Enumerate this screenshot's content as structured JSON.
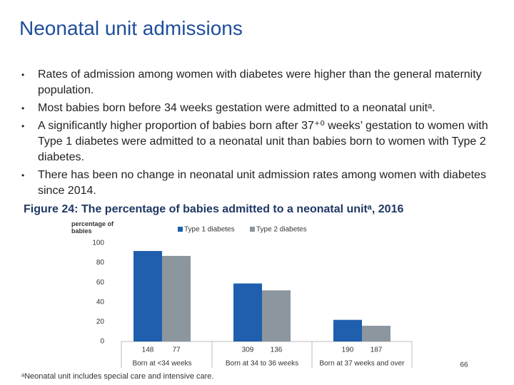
{
  "slide": {
    "title": "Neonatal unit admissions",
    "bullets": [
      "Rates of admission among women with diabetes were higher than the general maternity population.",
      "Most babies born before 34 weeks gestation were admitted to a neonatal unitᵃ.",
      "A significantly higher proportion of babies born after 37⁺⁰ weeks’ gestation to women with Type 1 diabetes were admitted to a neonatal unit than babies born to women with Type 2 diabetes.",
      "There has been no change in neonatal unit admission rates among women with diabetes since 2014."
    ],
    "footnote": "ᵃNeonatal unit includes special care and intensive care.",
    "page_number": "66"
  },
  "chart_data": {
    "type": "bar",
    "title": "Figure 24: The percentage of babies admitted to a neonatal unitᵃ, 2016",
    "y_label": "percentage of babies",
    "categories": [
      "Born at <34 weeks",
      "Born at 34 to 36 weeks",
      "Born at 37 weeks and over"
    ],
    "series": [
      {
        "name": "Type 1 diabetes",
        "color": "#1f5fad",
        "values": [
          92,
          59,
          22
        ],
        "sample_sizes": [
          148,
          309,
          190
        ]
      },
      {
        "name": "Type 2 diabetes",
        "color": "#8c969f",
        "values": [
          87,
          52,
          16
        ],
        "sample_sizes": [
          77,
          136,
          187
        ]
      }
    ],
    "ylim": [
      0,
      100
    ],
    "yticks": [
      0,
      20,
      40,
      60,
      80,
      100
    ],
    "grid": false
  }
}
